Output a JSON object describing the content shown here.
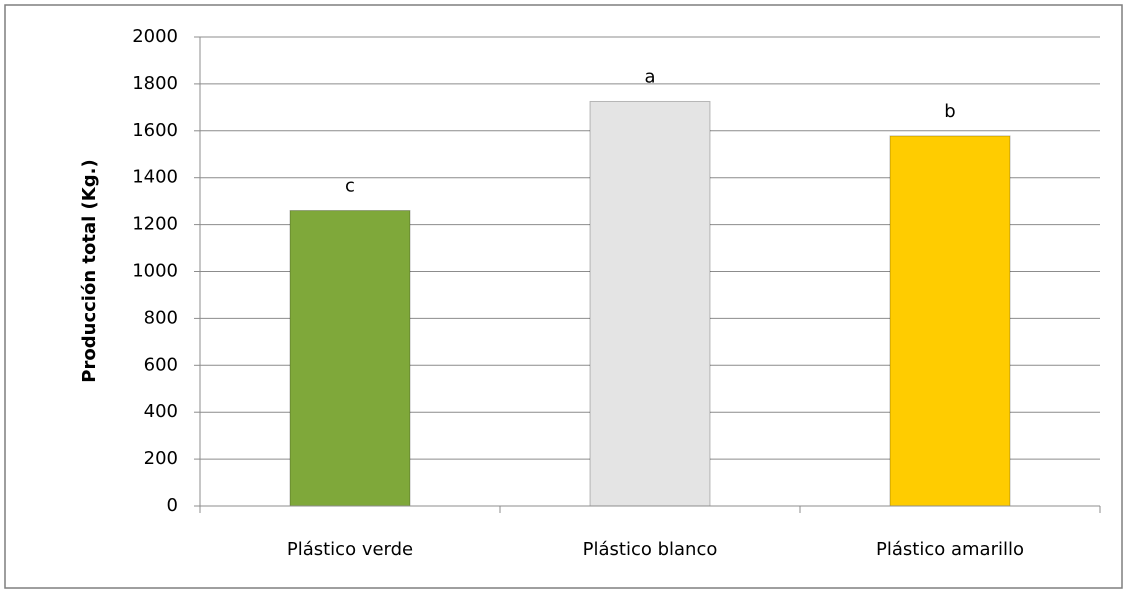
{
  "chart_data": {
    "type": "bar",
    "y_label": "Producción total (Kg.)",
    "categories": [
      "Plástico verde",
      "Plástico blanco",
      "Plástico amarillo"
    ],
    "values": [
      1260,
      1725,
      1578
    ],
    "annotations": [
      "c",
      "a",
      "b"
    ],
    "colors": [
      "#7fa83a",
      "#e4e4e4",
      "#ffcc00"
    ],
    "ylim": [
      0,
      2000
    ],
    "yticks": [
      0,
      200,
      400,
      600,
      800,
      1000,
      1200,
      1400,
      1600,
      1800,
      2000
    ],
    "grid": true
  }
}
